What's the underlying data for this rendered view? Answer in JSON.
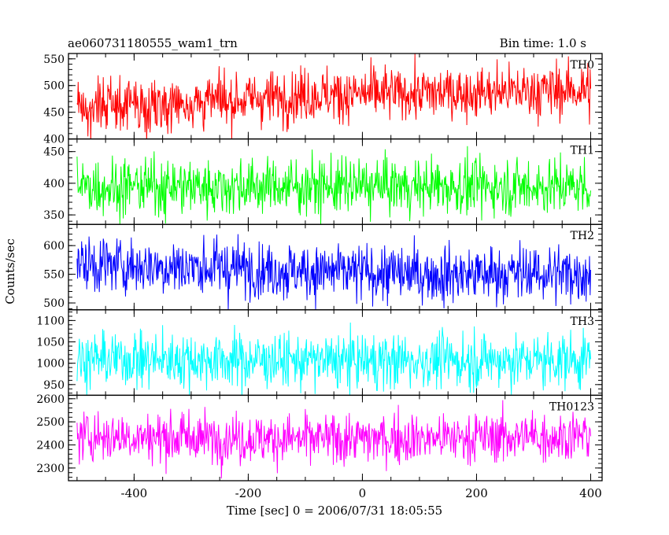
{
  "chart_data": {
    "type": "line",
    "title": "ae060731180555_wam1_trn",
    "subtitle": "Bin time: 1.0 s",
    "xlabel": "Time [sec] 0 = 2006/07/31 18:05:55",
    "ylabel": "Counts/sec",
    "xlim": [
      -515,
      420
    ],
    "x_ticks": [
      -400,
      -200,
      0,
      200,
      400
    ],
    "x_start": -500,
    "x_end": 400,
    "bin": 1.0,
    "panels": [
      {
        "name": "TH0",
        "color": "#ff0000",
        "ylim": [
          400,
          560
        ],
        "y_ticks": [
          400,
          450,
          500,
          550
        ],
        "trend_x": [
          -500,
          -300,
          -100,
          100,
          400
        ],
        "trend_y": [
          460,
          468,
          482,
          485,
          492
        ],
        "noise": 25
      },
      {
        "name": "TH1",
        "color": "#00ff00",
        "ylim": [
          335,
          470
        ],
        "y_ticks": [
          350,
          400,
          450
        ],
        "trend_x": [
          -500,
          0,
          400
        ],
        "trend_y": [
          395,
          395,
          395
        ],
        "noise": 22
      },
      {
        "name": "TH2",
        "color": "#0000ff",
        "ylim": [
          488,
          637
        ],
        "y_ticks": [
          500,
          550,
          600
        ],
        "trend_x": [
          -500,
          -200,
          -100,
          100,
          400
        ],
        "trend_y": [
          568,
          560,
          555,
          550,
          552
        ],
        "noise": 25
      },
      {
        "name": "TH3",
        "color": "#00ffff",
        "ylim": [
          925,
          1125
        ],
        "y_ticks": [
          950,
          1000,
          1050,
          1100
        ],
        "trend_x": [
          -500,
          0,
          400
        ],
        "trend_y": [
          1010,
          1005,
          1008
        ],
        "noise": 32
      },
      {
        "name": "TH0123",
        "color": "#ff00ff",
        "ylim": [
          2245,
          2615
        ],
        "y_ticks": [
          2300,
          2400,
          2500,
          2600
        ],
        "trend_x": [
          -500,
          -100,
          100,
          400
        ],
        "trend_y": [
          2440,
          2425,
          2430,
          2440
        ],
        "noise": 55
      }
    ]
  }
}
